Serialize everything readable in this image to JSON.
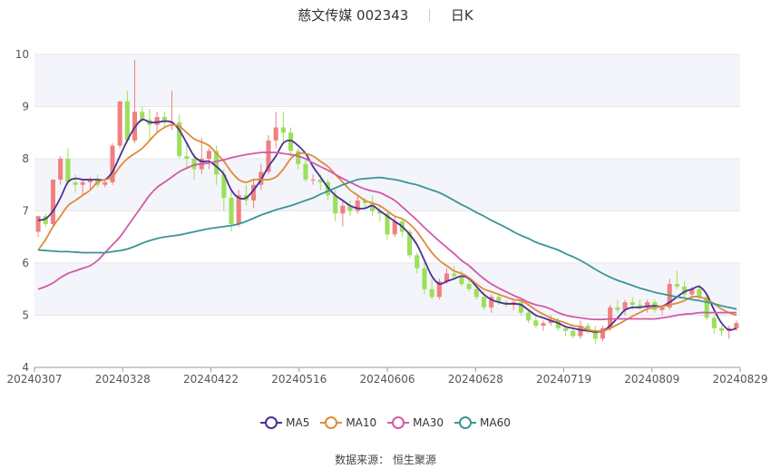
{
  "header": {
    "title": "慈文传媒 002343",
    "period": "日K"
  },
  "source": {
    "label": "数据来源：",
    "value": "恒生聚源"
  },
  "chart_data": {
    "type": "candlestick",
    "ylim": [
      4,
      10
    ],
    "yticks": [
      4,
      5,
      6,
      7,
      8,
      9,
      10
    ],
    "xticks": [
      "20240307",
      "20240328",
      "20240422",
      "20240516",
      "20240606",
      "20240628",
      "20240719",
      "20240809",
      "20240829"
    ],
    "colors": {
      "up": "#f08080",
      "down": "#9be05a",
      "grid": "#e6e6e6",
      "band": "#f4f5fb"
    },
    "candles_ohlc": [
      [
        6.6,
        6.9,
        6.5,
        6.9
      ],
      [
        6.9,
        6.95,
        6.7,
        6.75
      ],
      [
        6.75,
        7.6,
        6.7,
        7.6
      ],
      [
        7.6,
        8.05,
        7.5,
        8.0
      ],
      [
        8.0,
        8.2,
        7.5,
        7.55
      ],
      [
        7.55,
        7.7,
        7.35,
        7.5
      ],
      [
        7.5,
        7.6,
        7.3,
        7.55
      ],
      [
        7.55,
        7.65,
        7.4,
        7.6
      ],
      [
        7.6,
        7.7,
        7.45,
        7.5
      ],
      [
        7.5,
        7.6,
        7.45,
        7.55
      ],
      [
        7.55,
        8.3,
        7.5,
        8.25
      ],
      [
        8.25,
        9.1,
        8.2,
        9.1
      ],
      [
        9.1,
        9.3,
        8.3,
        8.35
      ],
      [
        8.35,
        9.9,
        8.3,
        8.9
      ],
      [
        8.9,
        9.0,
        8.7,
        8.75
      ],
      [
        8.75,
        8.95,
        8.35,
        8.65
      ],
      [
        8.65,
        8.9,
        8.5,
        8.8
      ],
      [
        8.8,
        8.9,
        8.6,
        8.7
      ],
      [
        8.7,
        9.3,
        8.55,
        8.7
      ],
      [
        8.7,
        8.85,
        8.0,
        8.05
      ],
      [
        8.05,
        8.3,
        7.8,
        8.0
      ],
      [
        8.0,
        8.1,
        7.6,
        7.8
      ],
      [
        7.8,
        8.4,
        7.7,
        8.0
      ],
      [
        8.0,
        8.2,
        7.8,
        8.15
      ],
      [
        8.15,
        8.25,
        7.5,
        7.7
      ],
      [
        7.7,
        7.8,
        7.0,
        7.25
      ],
      [
        7.25,
        7.4,
        6.6,
        6.75
      ],
      [
        6.75,
        7.4,
        6.7,
        7.3
      ],
      [
        7.3,
        7.5,
        7.1,
        7.2
      ],
      [
        7.2,
        7.6,
        7.05,
        7.5
      ],
      [
        7.5,
        7.9,
        7.4,
        7.75
      ],
      [
        7.75,
        8.45,
        7.7,
        8.35
      ],
      [
        8.35,
        8.9,
        8.2,
        8.6
      ],
      [
        8.6,
        8.9,
        8.3,
        8.5
      ],
      [
        8.5,
        8.6,
        8.05,
        8.15
      ],
      [
        8.15,
        8.2,
        7.8,
        7.9
      ],
      [
        7.9,
        8.0,
        7.55,
        7.6
      ],
      [
        7.6,
        7.7,
        7.5,
        7.6
      ],
      [
        7.6,
        7.7,
        7.4,
        7.55
      ],
      [
        7.55,
        7.6,
        7.2,
        7.3
      ],
      [
        7.3,
        7.4,
        6.8,
        6.95
      ],
      [
        6.95,
        7.2,
        6.7,
        7.1
      ],
      [
        7.1,
        7.2,
        6.9,
        7.0
      ],
      [
        7.0,
        7.3,
        6.95,
        7.2
      ],
      [
        7.2,
        7.25,
        7.05,
        7.15
      ],
      [
        7.15,
        7.3,
        6.9,
        7.0
      ],
      [
        7.0,
        7.1,
        6.8,
        6.95
      ],
      [
        6.95,
        7.0,
        6.45,
        6.55
      ],
      [
        6.55,
        6.9,
        6.5,
        6.8
      ],
      [
        6.8,
        6.85,
        6.5,
        6.6
      ],
      [
        6.6,
        6.65,
        6.1,
        6.15
      ],
      [
        6.15,
        6.2,
        5.8,
        5.9
      ],
      [
        5.9,
        6.0,
        5.4,
        5.5
      ],
      [
        5.5,
        5.7,
        5.3,
        5.35
      ],
      [
        5.35,
        5.7,
        5.3,
        5.65
      ],
      [
        5.65,
        5.9,
        5.6,
        5.8
      ],
      [
        5.8,
        5.95,
        5.7,
        5.75
      ],
      [
        5.75,
        5.85,
        5.55,
        5.6
      ],
      [
        5.6,
        5.7,
        5.45,
        5.5
      ],
      [
        5.5,
        5.6,
        5.3,
        5.35
      ],
      [
        5.35,
        5.45,
        5.1,
        5.15
      ],
      [
        5.15,
        5.4,
        5.05,
        5.35
      ],
      [
        5.35,
        5.4,
        5.2,
        5.25
      ],
      [
        5.25,
        5.3,
        5.15,
        5.2
      ],
      [
        5.2,
        5.3,
        5.1,
        5.25
      ],
      [
        5.25,
        5.3,
        5.0,
        5.05
      ],
      [
        5.05,
        5.1,
        4.85,
        4.9
      ],
      [
        4.9,
        5.0,
        4.75,
        4.8
      ],
      [
        4.8,
        4.9,
        4.7,
        4.85
      ],
      [
        4.85,
        5.0,
        4.8,
        4.9
      ],
      [
        4.9,
        4.95,
        4.7,
        4.75
      ],
      [
        4.75,
        4.8,
        4.6,
        4.7
      ],
      [
        4.7,
        4.75,
        4.55,
        4.6
      ],
      [
        4.6,
        4.9,
        4.55,
        4.8
      ],
      [
        4.8,
        4.85,
        4.65,
        4.7
      ],
      [
        4.7,
        4.8,
        4.45,
        4.55
      ],
      [
        4.55,
        4.8,
        4.5,
        4.75
      ],
      [
        4.75,
        5.2,
        4.7,
        5.15
      ],
      [
        5.15,
        5.3,
        5.05,
        5.1
      ],
      [
        5.1,
        5.3,
        5.0,
        5.25
      ],
      [
        5.25,
        5.35,
        5.1,
        5.2
      ],
      [
        5.2,
        5.3,
        5.1,
        5.15
      ],
      [
        5.15,
        5.3,
        5.05,
        5.25
      ],
      [
        5.25,
        5.3,
        5.05,
        5.1
      ],
      [
        5.1,
        5.2,
        5.0,
        5.15
      ],
      [
        5.15,
        5.7,
        5.1,
        5.6
      ],
      [
        5.6,
        5.85,
        5.5,
        5.55
      ],
      [
        5.55,
        5.65,
        5.35,
        5.4
      ],
      [
        5.4,
        5.55,
        5.3,
        5.5
      ],
      [
        5.5,
        5.6,
        5.3,
        5.35
      ],
      [
        5.35,
        5.4,
        4.9,
        4.95
      ],
      [
        4.95,
        5.0,
        4.65,
        4.75
      ],
      [
        4.75,
        4.8,
        4.6,
        4.7
      ],
      [
        4.7,
        4.8,
        4.55,
        4.75
      ],
      [
        4.75,
        4.9,
        4.7,
        4.85
      ]
    ],
    "series": [
      {
        "name": "MA5",
        "color": "#4b2f94",
        "values": [
          6.82,
          6.85,
          7.0,
          7.25,
          7.55,
          7.62,
          7.6,
          7.6,
          7.6,
          7.6,
          7.75,
          8.05,
          8.35,
          8.6,
          8.75,
          8.7,
          8.7,
          8.72,
          8.7,
          8.55,
          8.3,
          8.05,
          7.95,
          7.95,
          7.85,
          7.7,
          7.4,
          7.25,
          7.25,
          7.4,
          7.6,
          7.85,
          8.05,
          8.3,
          8.35,
          8.25,
          8.1,
          7.85,
          7.65,
          7.45,
          7.3,
          7.2,
          7.1,
          7.05,
          7.05,
          7.1,
          7.0,
          6.9,
          6.8,
          6.7,
          6.55,
          6.35,
          6.05,
          5.75,
          5.6,
          5.65,
          5.7,
          5.75,
          5.7,
          5.55,
          5.4,
          5.3,
          5.25,
          5.22,
          5.22,
          5.2,
          5.1,
          5.0,
          4.95,
          4.9,
          4.85,
          4.78,
          4.75,
          4.72,
          4.7,
          4.68,
          4.7,
          4.8,
          4.95,
          5.1,
          5.15,
          5.15,
          5.17,
          5.18,
          5.17,
          5.25,
          5.35,
          5.45,
          5.5,
          5.55,
          5.4,
          5.1,
          4.85,
          4.72,
          4.75
        ]
      },
      {
        "name": "MA10",
        "color": "#e08a3c",
        "values": [
          6.25,
          6.45,
          6.7,
          6.9,
          7.1,
          7.2,
          7.3,
          7.4,
          7.55,
          7.6,
          7.65,
          7.85,
          8.0,
          8.1,
          8.2,
          8.35,
          8.5,
          8.6,
          8.65,
          8.62,
          8.5,
          8.38,
          8.32,
          8.25,
          8.1,
          7.95,
          7.75,
          7.6,
          7.55,
          7.6,
          7.6,
          7.6,
          7.65,
          7.8,
          8.0,
          8.1,
          8.1,
          8.05,
          7.95,
          7.85,
          7.7,
          7.55,
          7.4,
          7.3,
          7.2,
          7.15,
          7.1,
          7.0,
          6.9,
          6.85,
          6.75,
          6.6,
          6.4,
          6.2,
          6.05,
          5.95,
          5.85,
          5.8,
          5.72,
          5.6,
          5.5,
          5.45,
          5.4,
          5.35,
          5.3,
          5.28,
          5.2,
          5.1,
          5.02,
          4.95,
          4.9,
          4.85,
          4.8,
          4.78,
          4.72,
          4.7,
          4.7,
          4.75,
          4.82,
          4.9,
          4.98,
          5.05,
          5.12,
          5.15,
          5.17,
          5.2,
          5.23,
          5.28,
          5.35,
          5.35,
          5.3,
          5.22,
          5.12,
          5.05,
          5.0
        ]
      },
      {
        "name": "MA30",
        "color": "#d15aa8",
        "values": [
          5.5,
          5.55,
          5.62,
          5.72,
          5.8,
          5.85,
          5.9,
          5.95,
          6.05,
          6.2,
          6.35,
          6.5,
          6.7,
          6.9,
          7.1,
          7.3,
          7.45,
          7.55,
          7.65,
          7.75,
          7.82,
          7.88,
          7.9,
          7.92,
          7.95,
          7.98,
          8.02,
          8.05,
          8.08,
          8.1,
          8.12,
          8.12,
          8.12,
          8.1,
          8.08,
          8.05,
          8.0,
          7.92,
          7.85,
          7.78,
          7.7,
          7.62,
          7.55,
          7.48,
          7.42,
          7.38,
          7.35,
          7.28,
          7.2,
          7.08,
          6.95,
          6.82,
          6.68,
          6.55,
          6.42,
          6.3,
          6.18,
          6.05,
          5.95,
          5.82,
          5.7,
          5.6,
          5.52,
          5.45,
          5.38,
          5.32,
          5.25,
          5.2,
          5.17,
          5.12,
          5.05,
          5.0,
          4.97,
          4.95,
          4.93,
          4.92,
          4.92,
          4.93,
          4.93,
          4.93,
          4.93,
          4.93,
          4.93,
          4.93,
          4.95,
          4.97,
          5.0,
          5.02,
          5.03,
          5.05,
          5.05,
          5.05,
          5.05,
          5.05,
          5.05
        ]
      },
      {
        "name": "MA60",
        "color": "#3a9596",
        "values": [
          6.25,
          6.24,
          6.23,
          6.22,
          6.22,
          6.21,
          6.2,
          6.2,
          6.2,
          6.2,
          6.22,
          6.24,
          6.27,
          6.32,
          6.38,
          6.43,
          6.47,
          6.5,
          6.52,
          6.54,
          6.57,
          6.6,
          6.63,
          6.66,
          6.68,
          6.7,
          6.72,
          6.75,
          6.8,
          6.86,
          6.92,
          6.97,
          7.02,
          7.06,
          7.1,
          7.15,
          7.2,
          7.25,
          7.32,
          7.38,
          7.44,
          7.5,
          7.55,
          7.6,
          7.62,
          7.63,
          7.64,
          7.62,
          7.6,
          7.57,
          7.53,
          7.5,
          7.45,
          7.4,
          7.35,
          7.28,
          7.2,
          7.12,
          7.05,
          6.97,
          6.9,
          6.82,
          6.75,
          6.68,
          6.6,
          6.53,
          6.47,
          6.4,
          6.35,
          6.3,
          6.25,
          6.18,
          6.12,
          6.05,
          5.97,
          5.88,
          5.8,
          5.73,
          5.67,
          5.62,
          5.57,
          5.52,
          5.48,
          5.44,
          5.41,
          5.38,
          5.35,
          5.33,
          5.3,
          5.28,
          5.25,
          5.22,
          5.18,
          5.15,
          5.12
        ]
      }
    ]
  }
}
